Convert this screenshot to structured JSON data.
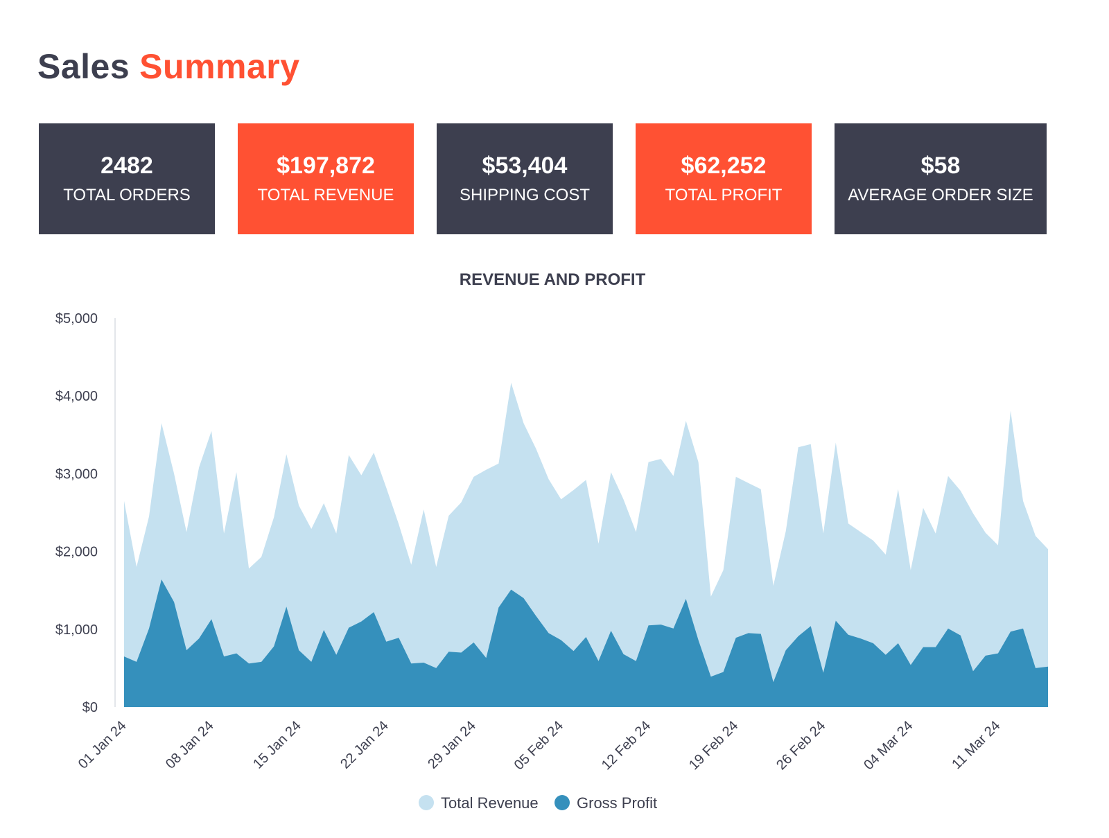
{
  "header": {
    "title_part1": "Sales",
    "title_part2": "Summary"
  },
  "kpis": [
    {
      "value": "2482",
      "label": "TOTAL ORDERS"
    },
    {
      "value": "$197,872",
      "label": "TOTAL REVENUE"
    },
    {
      "value": "$53,404",
      "label": "SHIPPING COST"
    },
    {
      "value": "$62,252",
      "label": "TOTAL PROFIT"
    },
    {
      "value": "$58",
      "label": "AVERAGE ORDER SIZE"
    }
  ],
  "colors": {
    "dark": "#3d3f4f",
    "accent": "#ff5133",
    "revenue": "#c5e1f0",
    "profit": "#3590bc"
  },
  "chart_data": {
    "type": "area",
    "title": "REVENUE AND PROFIT",
    "xlabel": "",
    "ylabel": "",
    "ylim": [
      0,
      5000
    ],
    "y_ticks": [
      "$0",
      "$1,000",
      "$2,000",
      "$3,000",
      "$4,000",
      "$5,000"
    ],
    "x_tick_labels": [
      "01 Jan 24",
      "08 Jan 24",
      "15 Jan 24",
      "22 Jan 24",
      "29 Jan 24",
      "05 Feb 24",
      "12 Feb 24",
      "19 Feb 24",
      "26 Feb 24",
      "04 Mar 24",
      "11 Mar 24"
    ],
    "x_tick_interval_days": 7,
    "start_date": "01 Jan 24",
    "legend": [
      "Total Revenue",
      "Gross Profit"
    ],
    "series": [
      {
        "name": "Total Revenue",
        "values": [
          2650,
          1800,
          2450,
          3650,
          3000,
          2250,
          3080,
          3550,
          2230,
          3020,
          1780,
          1930,
          2440,
          3250,
          2590,
          2290,
          2620,
          2230,
          3240,
          2980,
          3270,
          2820,
          2350,
          1830,
          2540,
          1800,
          2460,
          2630,
          2960,
          3050,
          3130,
          4170,
          3650,
          3320,
          2930,
          2670,
          2790,
          2920,
          2100,
          3020,
          2670,
          2250,
          3150,
          3190,
          2970,
          3680,
          3150,
          1420,
          1760,
          2960,
          2880,
          2800,
          1560,
          2260,
          3340,
          3380,
          2230,
          3400,
          2360,
          2250,
          2140,
          1960,
          2800,
          1760,
          2560,
          2230,
          2970,
          2780,
          2490,
          2240,
          2080,
          3810,
          2650,
          2200,
          2030
        ]
      },
      {
        "name": "Gross Profit",
        "values": [
          650,
          580,
          1010,
          1640,
          1350,
          730,
          880,
          1130,
          650,
          690,
          560,
          580,
          780,
          1290,
          730,
          580,
          990,
          670,
          1020,
          1100,
          1220,
          840,
          890,
          560,
          570,
          500,
          710,
          700,
          830,
          630,
          1280,
          1510,
          1400,
          1170,
          950,
          860,
          720,
          900,
          590,
          980,
          680,
          590,
          1050,
          1060,
          1010,
          1390,
          860,
          390,
          450,
          890,
          950,
          940,
          320,
          730,
          910,
          1040,
          440,
          1110,
          930,
          880,
          820,
          670,
          820,
          540,
          770,
          770,
          1010,
          920,
          460,
          660,
          690,
          970,
          1010,
          500,
          520
        ]
      }
    ]
  }
}
